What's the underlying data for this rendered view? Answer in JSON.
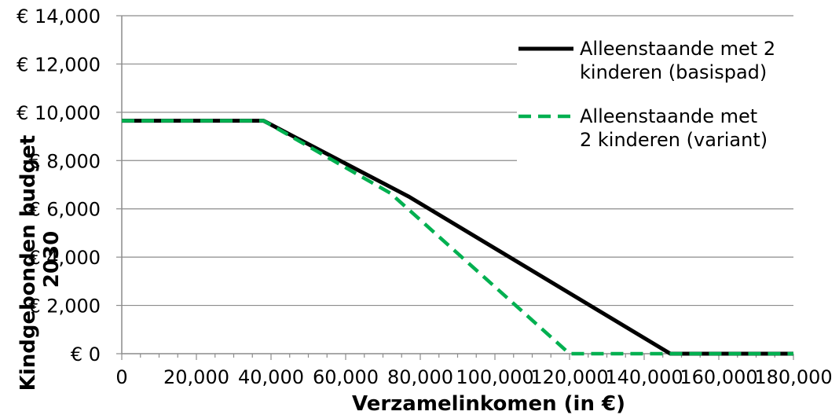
{
  "chart_data": {
    "type": "line",
    "xlabel": "Verzamelinkomen (in €)",
    "ylabel": "Kindgebonden budget 2030",
    "xlim": [
      0,
      180000
    ],
    "ylim": [
      0,
      14000
    ],
    "x_ticks": [
      0,
      20000,
      40000,
      60000,
      80000,
      100000,
      120000,
      140000,
      160000,
      180000
    ],
    "x_tick_labels": [
      "0",
      "20,000",
      "40,000",
      "60,000",
      "80,000",
      "100,000",
      "120,000",
      "140,000",
      "160,000",
      "180,000"
    ],
    "y_ticks": [
      0,
      2000,
      4000,
      6000,
      8000,
      10000,
      12000,
      14000
    ],
    "y_tick_labels": [
      "€ 0",
      "€ 2,000",
      "€ 4,000",
      "€ 6,000",
      "€ 8,000",
      "€ 10,000",
      "€ 12,000",
      "€ 14,000"
    ],
    "grid": "horizontal",
    "legend_position": "top-right",
    "series": [
      {
        "name": "Alleenstaande met 2 kinderen (basispad)",
        "legend_lines": [
          "Alleenstaande met 2",
          "kinderen (basispad)"
        ],
        "color": "#000000",
        "style": "solid",
        "x": [
          0,
          38000,
          77000,
          147000,
          180000
        ],
        "y": [
          9650,
          9650,
          6500,
          0,
          0
        ]
      },
      {
        "name": "Alleenstaande met 2 kinderen (variant)",
        "legend_lines": [
          "Alleenstaande met",
          "2 kinderen (variant)"
        ],
        "color": "#00b050",
        "style": "dashed",
        "x": [
          0,
          38000,
          72000,
          120000,
          180000
        ],
        "y": [
          9650,
          9650,
          6650,
          0,
          0
        ]
      }
    ]
  }
}
